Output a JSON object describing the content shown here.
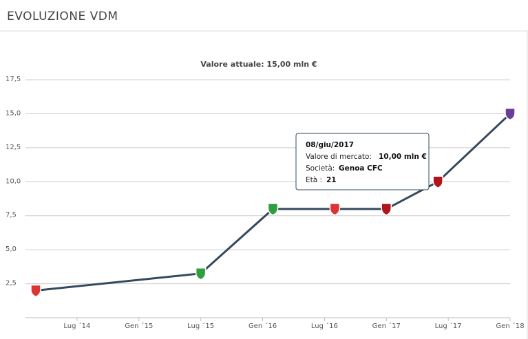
{
  "header": {
    "title": "EVOLUZIONE VDM"
  },
  "chart_data": {
    "type": "line",
    "subtitle": "Valore attuale: 15,00 mln €",
    "x": [
      "2014-03",
      "2015-07",
      "2016-02",
      "2016-08",
      "2017-01",
      "2017-06",
      "2018-01"
    ],
    "series": [
      {
        "name": "Valore di mercato",
        "color": "#34495e",
        "values": [
          2,
          3.25,
          8,
          8,
          8,
          10,
          15
        ]
      }
    ],
    "marker_colors": [
      "#d33",
      "#2e9e3e",
      "#2e9e3e",
      "#d33",
      "#b1141b",
      "#b1141b",
      "#6a3d9a"
    ],
    "xlim": [
      "2014-02",
      "2018-01"
    ],
    "xticks": [
      {
        "value": "2014-07",
        "label": "Lug ´14"
      },
      {
        "value": "2015-01",
        "label": "Gen ´15"
      },
      {
        "value": "2015-07",
        "label": "Lug ´15"
      },
      {
        "value": "2016-01",
        "label": "Gen ´16"
      },
      {
        "value": "2016-07",
        "label": "Lug ´16"
      },
      {
        "value": "2017-01",
        "label": "Gen ´17"
      },
      {
        "value": "2017-07",
        "label": "Lug ´17"
      },
      {
        "value": "2018-01",
        "label": "Gen ´18"
      }
    ],
    "ylim": [
      0,
      17.5
    ],
    "yticks": [
      {
        "value": 2.5,
        "label": "2,5"
      },
      {
        "value": 5,
        "label": "5,0"
      },
      {
        "value": 7.5,
        "label": "7,5"
      },
      {
        "value": 10,
        "label": "10,0"
      },
      {
        "value": 12.5,
        "label": "12,5"
      },
      {
        "value": 15,
        "label": "15,0"
      },
      {
        "value": 17.5,
        "label": "17,5"
      }
    ],
    "grid": true,
    "tooltip": {
      "date": "08/giu/2017",
      "value_label": "Valore di mercato:",
      "value": "10,00 mln €",
      "club_label": "Società:",
      "club": "Genoa CFC",
      "age_label": "Età :",
      "age": "21"
    }
  }
}
